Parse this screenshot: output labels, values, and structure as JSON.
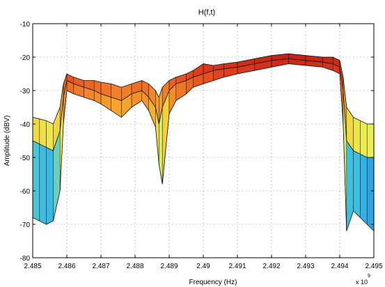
{
  "chart_data": {
    "type": "area",
    "title": "H(f,t)",
    "xlabel": "Frequency (Hz)",
    "ylabel": "Amplitude (dBV)",
    "x_multiplier": "x 10",
    "x_multiplier_exponent": "9",
    "xlim": [
      2.485,
      2.495
    ],
    "ylim": [
      -80,
      -10
    ],
    "x_ticks": [
      "2.485",
      "2.486",
      "2.487",
      "2.488",
      "2.489",
      "2.49",
      "2.491",
      "2.492",
      "2.493",
      "2.494",
      "2.495"
    ],
    "y_ticks": [
      "-10",
      "-20",
      "-30",
      "-40",
      "-50",
      "-60",
      "-70",
      "-80"
    ],
    "grid": true,
    "colormap": [
      "#0a2a9c",
      "#1f6fd6",
      "#37b8e6",
      "#8fe39b",
      "#e8ef55",
      "#f8c233",
      "#f38a2a",
      "#e0401f",
      "#b51712"
    ],
    "series": [
      {
        "x": [
          2.485,
          2.4852,
          2.4854,
          2.4856,
          2.4858,
          2.4859,
          2.486,
          2.4862,
          2.4865,
          2.4868,
          2.487,
          2.4873,
          2.4876,
          2.4879,
          2.4882,
          2.4884,
          2.4886,
          2.4887,
          2.4888,
          2.489,
          2.4892,
          2.4895,
          2.4897,
          2.49,
          2.4903,
          2.4906,
          2.491,
          2.4915,
          2.492,
          2.4925,
          2.493,
          2.4935,
          2.4938,
          2.494,
          2.4941,
          2.4942,
          2.4944,
          2.4946,
          2.4948,
          2.495
        ],
        "values": [
          -38,
          -38.5,
          -39,
          -40,
          -35,
          -28,
          -25,
          -26,
          -27,
          -27,
          -27.5,
          -28,
          -29,
          -28,
          -27,
          -28,
          -30,
          -32,
          -29,
          -27,
          -26,
          -25,
          -24,
          -22,
          -22.5,
          -22,
          -21.5,
          -20.5,
          -19.5,
          -19,
          -19.5,
          -20,
          -20,
          -21,
          -26,
          -35,
          -38,
          -39,
          -40,
          -40
        ]
      },
      {
        "x": [
          2.485,
          2.4852,
          2.4854,
          2.4856,
          2.4858,
          2.4859,
          2.486,
          2.4862,
          2.4865,
          2.4868,
          2.487,
          2.4873,
          2.4876,
          2.4879,
          2.4882,
          2.4884,
          2.4886,
          2.4887,
          2.4888,
          2.489,
          2.4892,
          2.4895,
          2.4897,
          2.49,
          2.4903,
          2.4906,
          2.491,
          2.4915,
          2.492,
          2.4925,
          2.493,
          2.4935,
          2.4938,
          2.494,
          2.4941,
          2.4942,
          2.4944,
          2.4946,
          2.4948,
          2.495
        ],
        "values": [
          -45,
          -46,
          -47,
          -48,
          -42,
          -32,
          -27,
          -28,
          -29,
          -30,
          -31,
          -32,
          -33,
          -31,
          -30,
          -32,
          -35,
          -40,
          -35,
          -30,
          -28,
          -27,
          -26,
          -25,
          -24,
          -23.5,
          -23,
          -22,
          -21,
          -20.5,
          -21,
          -21.5,
          -22,
          -23,
          -30,
          -45,
          -48,
          -49,
          -50,
          -50
        ]
      },
      {
        "x": [
          2.485,
          2.4852,
          2.4854,
          2.4856,
          2.4858,
          2.4859,
          2.486,
          2.4862,
          2.4865,
          2.4868,
          2.487,
          2.4873,
          2.4876,
          2.4879,
          2.4882,
          2.4884,
          2.4886,
          2.4887,
          2.4888,
          2.489,
          2.4892,
          2.4895,
          2.4897,
          2.49,
          2.4903,
          2.4906,
          2.491,
          2.4915,
          2.492,
          2.4925,
          2.493,
          2.4935,
          2.4938,
          2.494,
          2.4941,
          2.4942,
          2.4944,
          2.4946,
          2.4948,
          2.495
        ],
        "values": [
          -68,
          -69,
          -70,
          -69,
          -60,
          -40,
          -30,
          -31,
          -32,
          -33,
          -34,
          -36,
          -38,
          -35,
          -33,
          -36,
          -41,
          -52,
          -58,
          -37,
          -33,
          -31,
          -29,
          -28,
          -27,
          -26,
          -25,
          -24,
          -23,
          -22,
          -22.5,
          -23,
          -24,
          -25,
          -40,
          -72,
          -66,
          -68,
          -70,
          -72
        ]
      }
    ]
  }
}
